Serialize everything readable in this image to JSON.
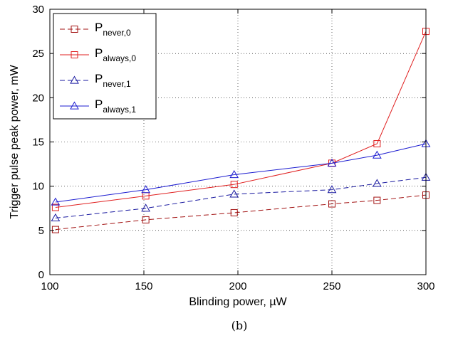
{
  "chart_data": {
    "type": "line",
    "xlabel": "Blinding power, µW",
    "ylabel": "Trigger pulse peak power, mW",
    "caption": "(b)",
    "xlim": [
      100,
      300
    ],
    "ylim": [
      0,
      30
    ],
    "xticks": [
      "100",
      "150",
      "200",
      "250",
      "300"
    ],
    "yticks": [
      "0",
      "5",
      "10",
      "15",
      "20",
      "25",
      "30"
    ],
    "grid": true,
    "legend_position": "top-left",
    "series": [
      {
        "name": "P",
        "subscript": "never,0",
        "color": "#a31414",
        "line": "dashed",
        "marker": "square",
        "x": [
          103,
          151,
          198,
          250,
          274,
          300
        ],
        "y": [
          5.1,
          6.2,
          7.0,
          8.0,
          8.4,
          9.0
        ]
      },
      {
        "name": "P",
        "subscript": "always,0",
        "color": "#e02020",
        "line": "solid",
        "marker": "square",
        "x": [
          103,
          151,
          198,
          250,
          274,
          300
        ],
        "y": [
          7.6,
          8.9,
          10.2,
          12.6,
          14.8,
          27.5
        ]
      },
      {
        "name": "P",
        "subscript": "never,1",
        "color": "#1a1aa0",
        "line": "dashed",
        "marker": "triangle",
        "x": [
          103,
          151,
          198,
          250,
          274,
          300
        ],
        "y": [
          6.4,
          7.5,
          9.1,
          9.6,
          10.3,
          11.0
        ]
      },
      {
        "name": "P",
        "subscript": "always,1",
        "color": "#1c1cd0",
        "line": "solid",
        "marker": "triangle",
        "x": [
          103,
          151,
          198,
          250,
          274,
          300
        ],
        "y": [
          8.2,
          9.6,
          11.3,
          12.6,
          13.5,
          14.8
        ]
      }
    ]
  }
}
